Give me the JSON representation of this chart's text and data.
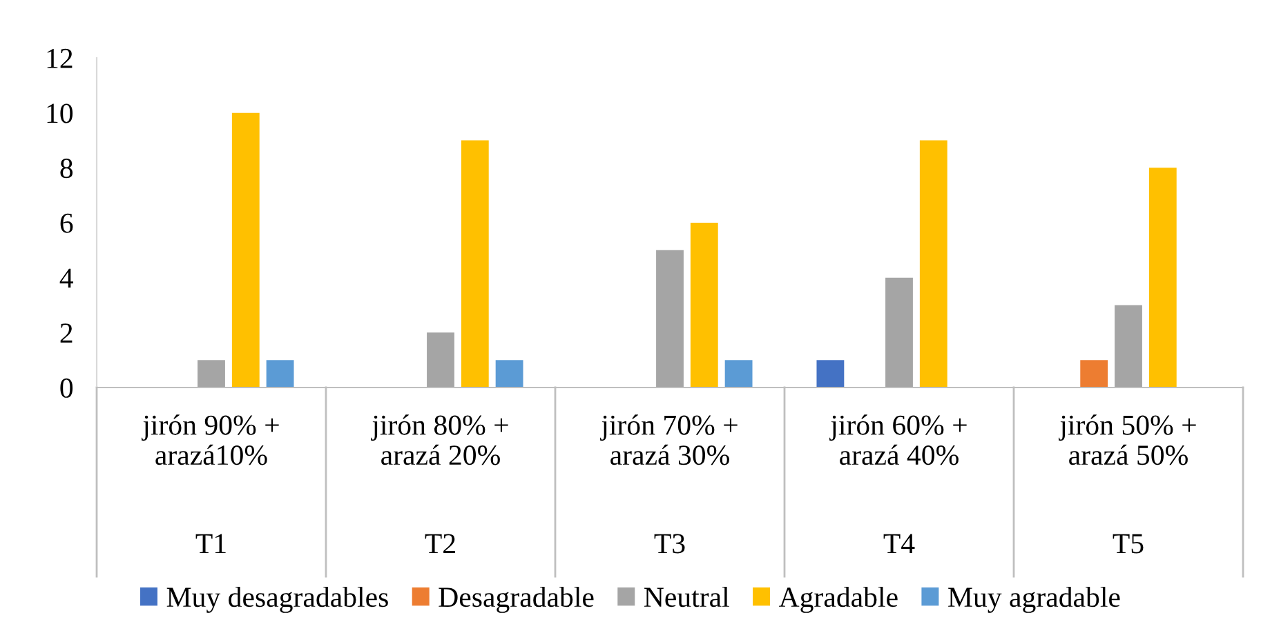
{
  "chart_data": {
    "type": "bar",
    "categories": [
      "jirón 90% +\narazá10%",
      "jirón 80% +\narazá 20%",
      "jirón 70% +\narazá 30%",
      "jirón 60% +\narazá 40%",
      "jirón 50% +\narazá 50%"
    ],
    "annotations": [
      "T1",
      "T2",
      "T3",
      "T4",
      "T5"
    ],
    "series": [
      {
        "name": "Muy desagradables",
        "color": "#4472c4",
        "values": [
          0,
          0,
          0,
          1,
          0
        ]
      },
      {
        "name": "Desagradable",
        "color": "#ed7d31",
        "values": [
          0,
          0,
          0,
          0,
          1
        ]
      },
      {
        "name": "Neutral",
        "color": "#a5a5a5",
        "values": [
          1,
          2,
          5,
          4,
          3
        ]
      },
      {
        "name": "Agradable",
        "color": "#ffc000",
        "values": [
          10,
          9,
          6,
          9,
          8
        ]
      },
      {
        "name": "Muy agradable",
        "color": "#5b9bd5",
        "values": [
          1,
          1,
          1,
          0,
          0
        ]
      }
    ],
    "ylim": [
      0,
      12
    ],
    "yticks": [
      0,
      2,
      4,
      6,
      8,
      10,
      12
    ],
    "grid": false,
    "legend": "bottom"
  }
}
